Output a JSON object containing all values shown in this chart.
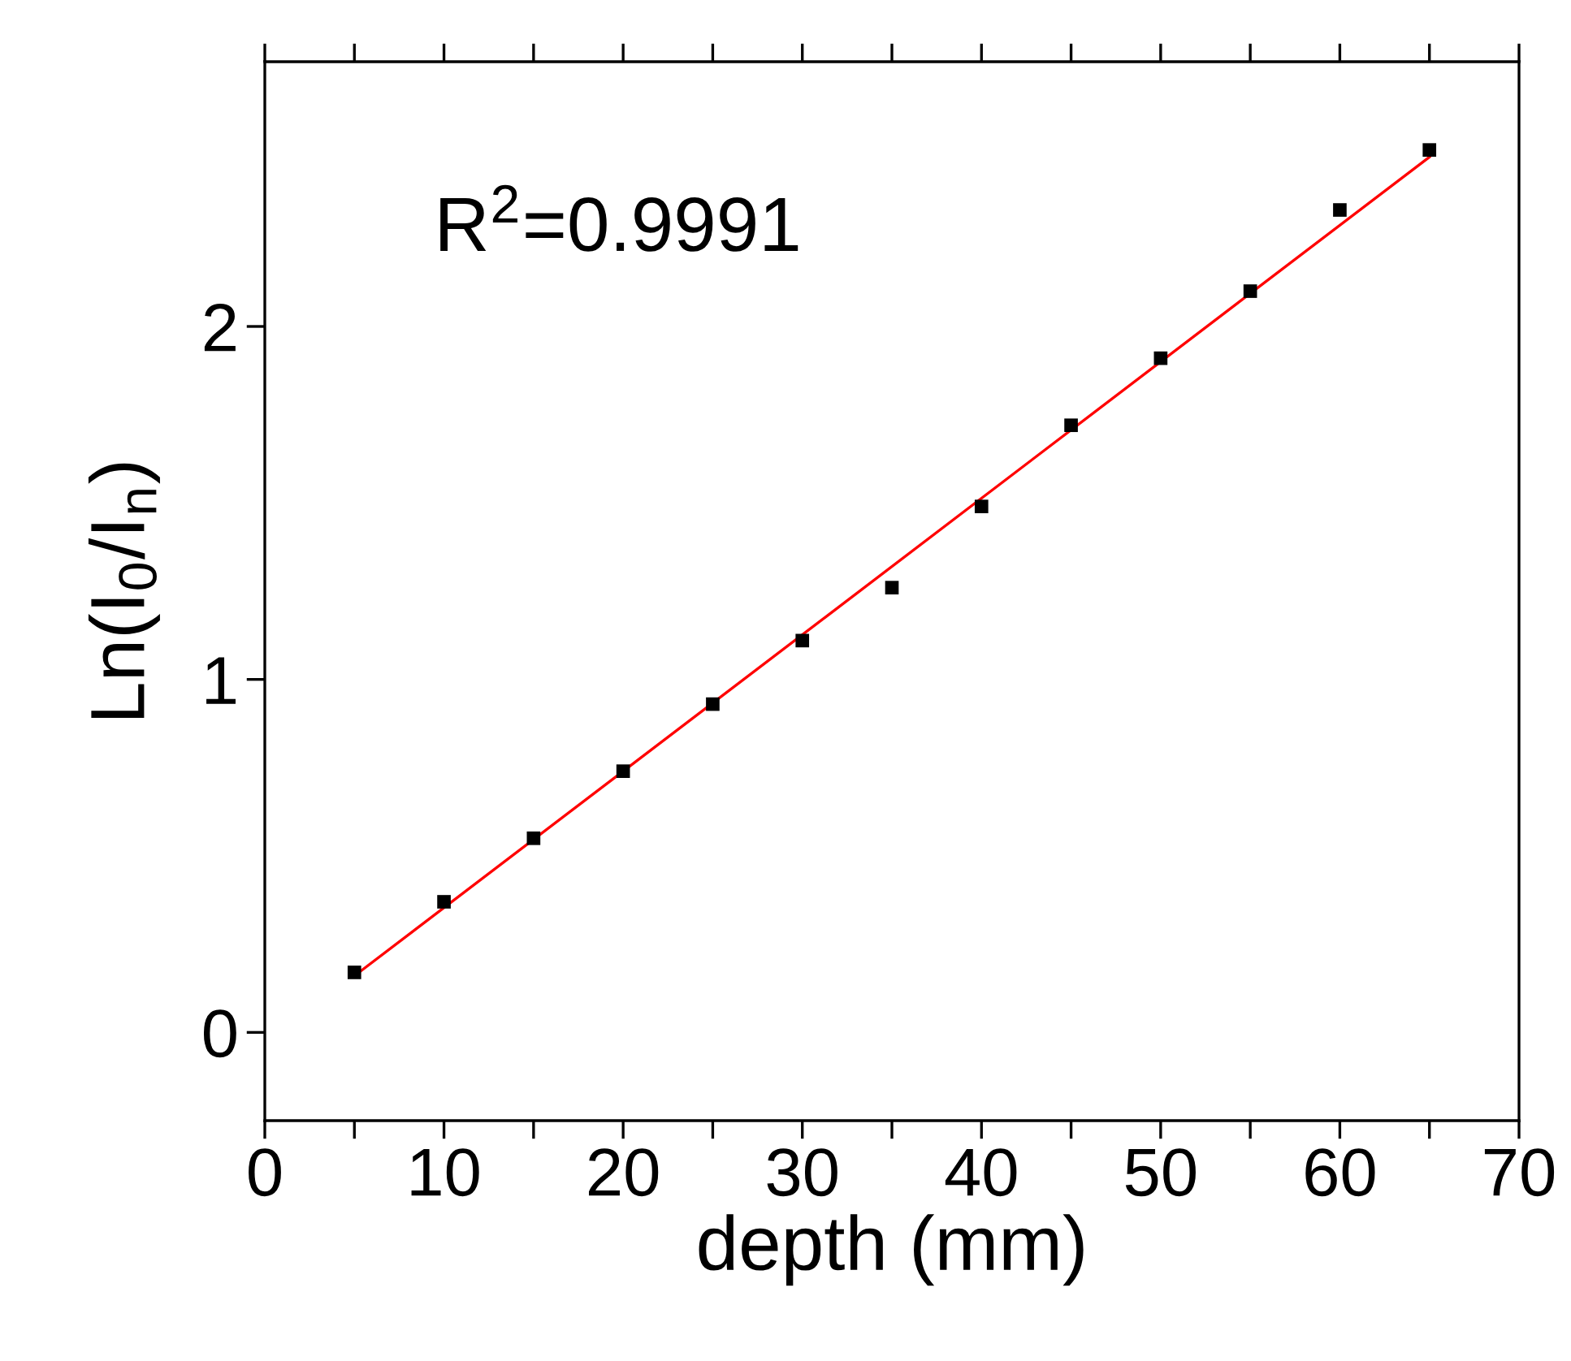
{
  "chart_data": {
    "type": "scatter",
    "xlabel": "depth (mm)",
    "ylabel": "Ln(I$_{0}$/I$_{n}$)",
    "annotations": [
      "R$^{2}$=0.9991"
    ],
    "x": [
      5,
      10,
      15,
      20,
      25,
      30,
      35,
      40,
      45,
      50,
      55,
      60,
      65
    ],
    "series": [
      {
        "color": "#000000",
        "marker": "square",
        "values": [
          0.17,
          0.37,
          0.55,
          0.74,
          0.93,
          1.11,
          1.26,
          1.49,
          1.72,
          1.91,
          2.1,
          2.33,
          2.5
        ]
      },
      {
        "type": "line",
        "color": "#ff0000",
        "marker": "none",
        "line_style": "solid",
        "x": [
          5,
          65
        ],
        "values": [
          0.16,
          2.48
        ]
      }
    ],
    "xlim": [
      0,
      70
    ],
    "ylim": [
      -0.25,
      2.75
    ],
    "xticks": [
      0,
      {
        "value": 5,
        "label": null
      },
      10,
      {
        "value": 15,
        "label": null
      },
      20,
      {
        "value": 25,
        "label": null
      },
      30,
      {
        "value": 35,
        "label": null
      },
      40,
      {
        "value": 45,
        "label": null
      },
      50,
      {
        "value": 55,
        "label": null
      },
      60,
      {
        "value": 65,
        "label": null
      },
      70
    ],
    "yticks": [
      0,
      1,
      2
    ],
    "grid": false,
    "legend": false
  }
}
